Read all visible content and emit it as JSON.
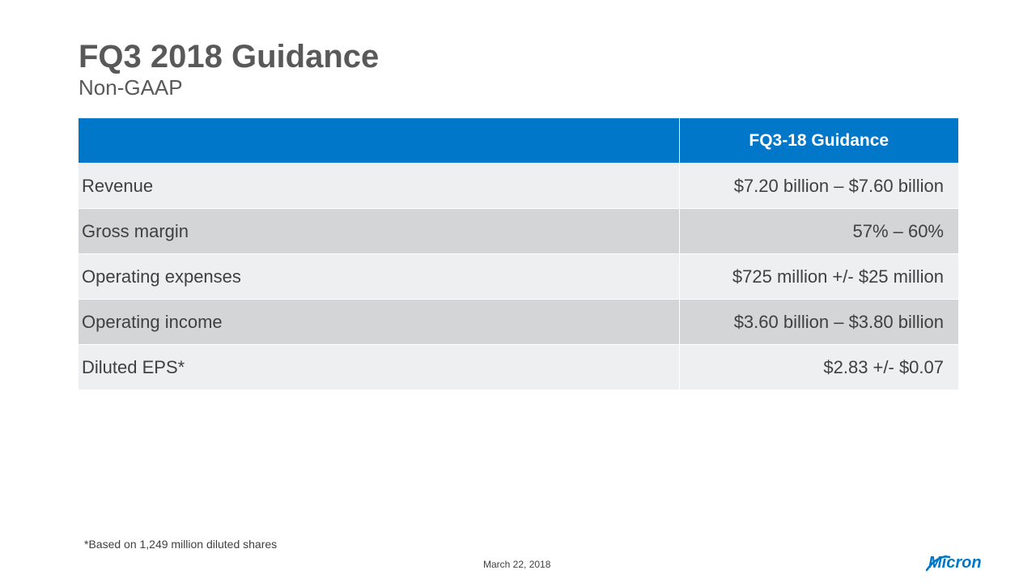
{
  "slide": {
    "title": "FQ3 2018 Guidance",
    "subtitle": "Non-GAAP",
    "footnote": "*Based on 1,249 million diluted shares",
    "date": "March 22, 2018",
    "logo_text": "Micron"
  },
  "table": {
    "header": [
      "",
      "FQ3-18 Guidance"
    ],
    "rows": [
      {
        "label": "Revenue",
        "value": "$7.20 billion – $7.60 billion"
      },
      {
        "label": "Gross margin",
        "value": "57% – 60%"
      },
      {
        "label": "Operating expenses",
        "value": "$725 million +/- $25 million"
      },
      {
        "label": "Operating income",
        "value": "$3.60 billion – $3.80 billion"
      },
      {
        "label": "Diluted EPS*",
        "value": "$2.83 +/- $0.07"
      }
    ]
  },
  "colors": {
    "header_blue": "#0077c8",
    "row_light": "#eeeff0",
    "row_dark": "#d4d5d7",
    "title_gray": "#595959",
    "logo_blue": "#0077c8"
  }
}
